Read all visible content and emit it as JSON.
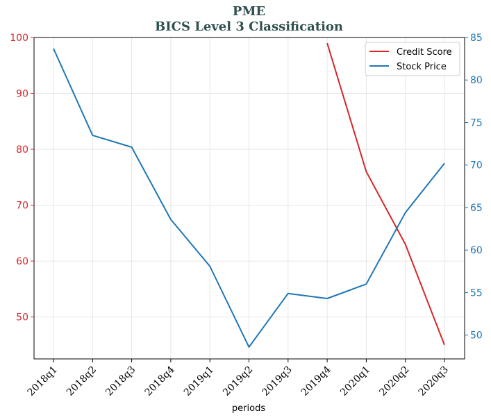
{
  "chart_data": {
    "type": "line",
    "title": "PME",
    "subtitle": "BICS Level 3 Classification",
    "xlabel": "periods",
    "categories": [
      "2018q1",
      "2018q2",
      "2018q3",
      "2018q4",
      "2019q1",
      "2019q2",
      "2019q3",
      "2019q4",
      "2020q1",
      "2020q2",
      "2020q3"
    ],
    "left_axis": {
      "ylim": [
        42.5,
        100
      ],
      "ticks": [
        50,
        60,
        70,
        80,
        90,
        100
      ],
      "color": "#d62728"
    },
    "right_axis": {
      "ylim": [
        47.2,
        85
      ],
      "ticks": [
        50,
        55,
        60,
        65,
        70,
        75,
        80,
        85
      ],
      "color": "#1f77b4"
    },
    "series": [
      {
        "name": "Credit Score",
        "axis": "left",
        "color": "#d62728",
        "values": [
          null,
          null,
          null,
          null,
          null,
          null,
          null,
          99,
          76,
          63,
          45
        ]
      },
      {
        "name": "Stock Price",
        "axis": "right",
        "color": "#1f77b4",
        "values": [
          83.7,
          73.5,
          72.1,
          63.6,
          58.1,
          48.6,
          54.9,
          54.3,
          56.0,
          64.4,
          70.2
        ]
      }
    ],
    "grid": true,
    "legend_position": "top-right"
  }
}
